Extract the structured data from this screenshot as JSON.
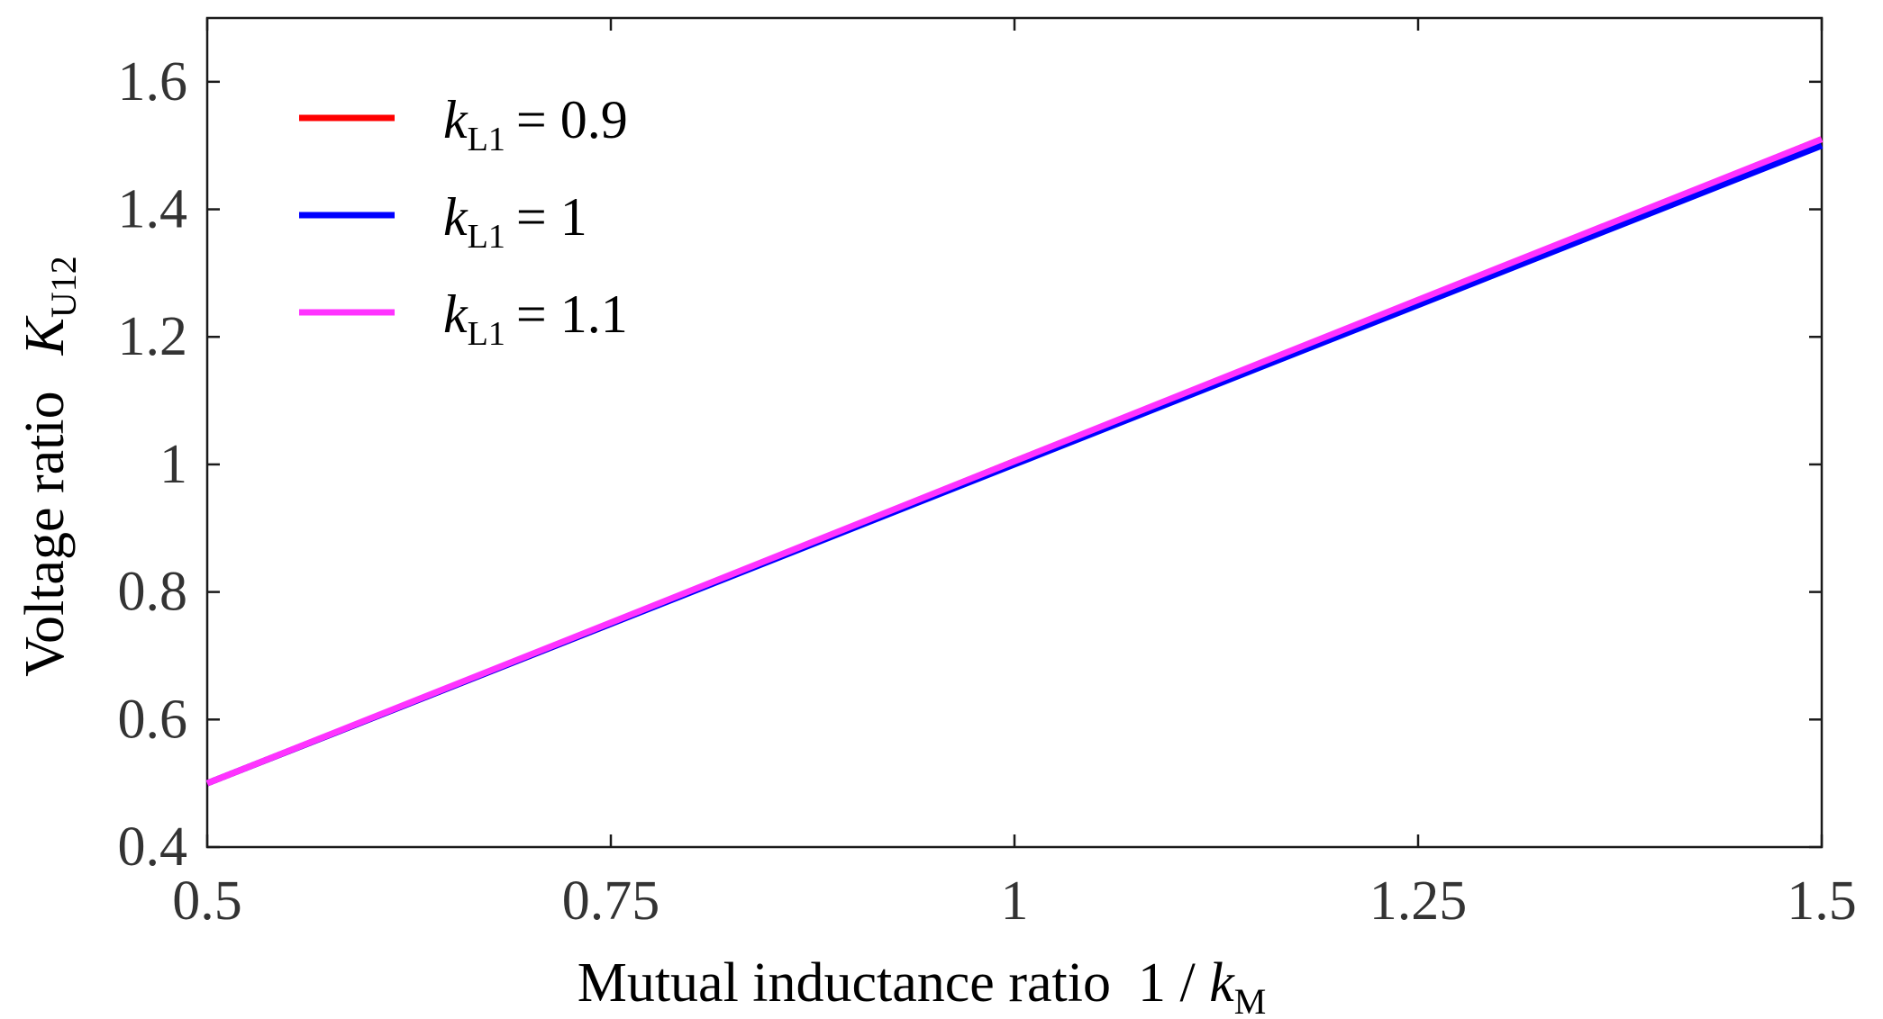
{
  "chart_data": {
    "type": "line",
    "xlabel": "Mutual inductance ratio",
    "xlabel_math": {
      "prefix": "1 / ",
      "symbol": "k",
      "subscript": "M"
    },
    "ylabel": "Voltage ratio",
    "ylabel_math": {
      "symbol": "K",
      "subscript": "U12"
    },
    "xlim": [
      0.5,
      1.5
    ],
    "ylim": [
      0.4,
      1.7
    ],
    "x_ticks": [
      0.5,
      0.75,
      1,
      1.25,
      1.5
    ],
    "x_tick_labels": [
      "0.5",
      "0.75",
      "1",
      "1.25",
      "1.5"
    ],
    "y_ticks": [
      0.4,
      0.6,
      0.8,
      1.0,
      1.2,
      1.4,
      1.6
    ],
    "y_tick_labels": [
      "0.4",
      "0.6",
      "0.8",
      "1",
      "1.2",
      "1.4",
      "1.6"
    ],
    "grid": false,
    "legend_position": "top-left",
    "series": [
      {
        "name": "k_L1 = 0.9",
        "legend_symbol": "k",
        "legend_subscript": "L1",
        "legend_value": "= 0.9",
        "color": "#ff0000",
        "x": [
          0.5,
          0.75,
          1.0,
          1.25,
          1.5
        ],
        "y": [
          0.5,
          0.75,
          1.005,
          1.255,
          1.51
        ]
      },
      {
        "name": "k_L1 = 1",
        "legend_symbol": "k",
        "legend_subscript": "L1",
        "legend_value": "= 1",
        "color": "#0000ff",
        "x": [
          0.5,
          0.75,
          1.0,
          1.25,
          1.5
        ],
        "y": [
          0.5,
          0.75,
          1.0,
          1.25,
          1.5
        ]
      },
      {
        "name": "k_L1 = 1.1",
        "legend_symbol": "k",
        "legend_subscript": "L1",
        "legend_value": "= 1.1",
        "color": "#ff33ff",
        "x": [
          0.5,
          0.75,
          1.0,
          1.25,
          1.5
        ],
        "y": [
          0.5,
          0.752,
          1.005,
          1.258,
          1.51
        ]
      }
    ]
  }
}
